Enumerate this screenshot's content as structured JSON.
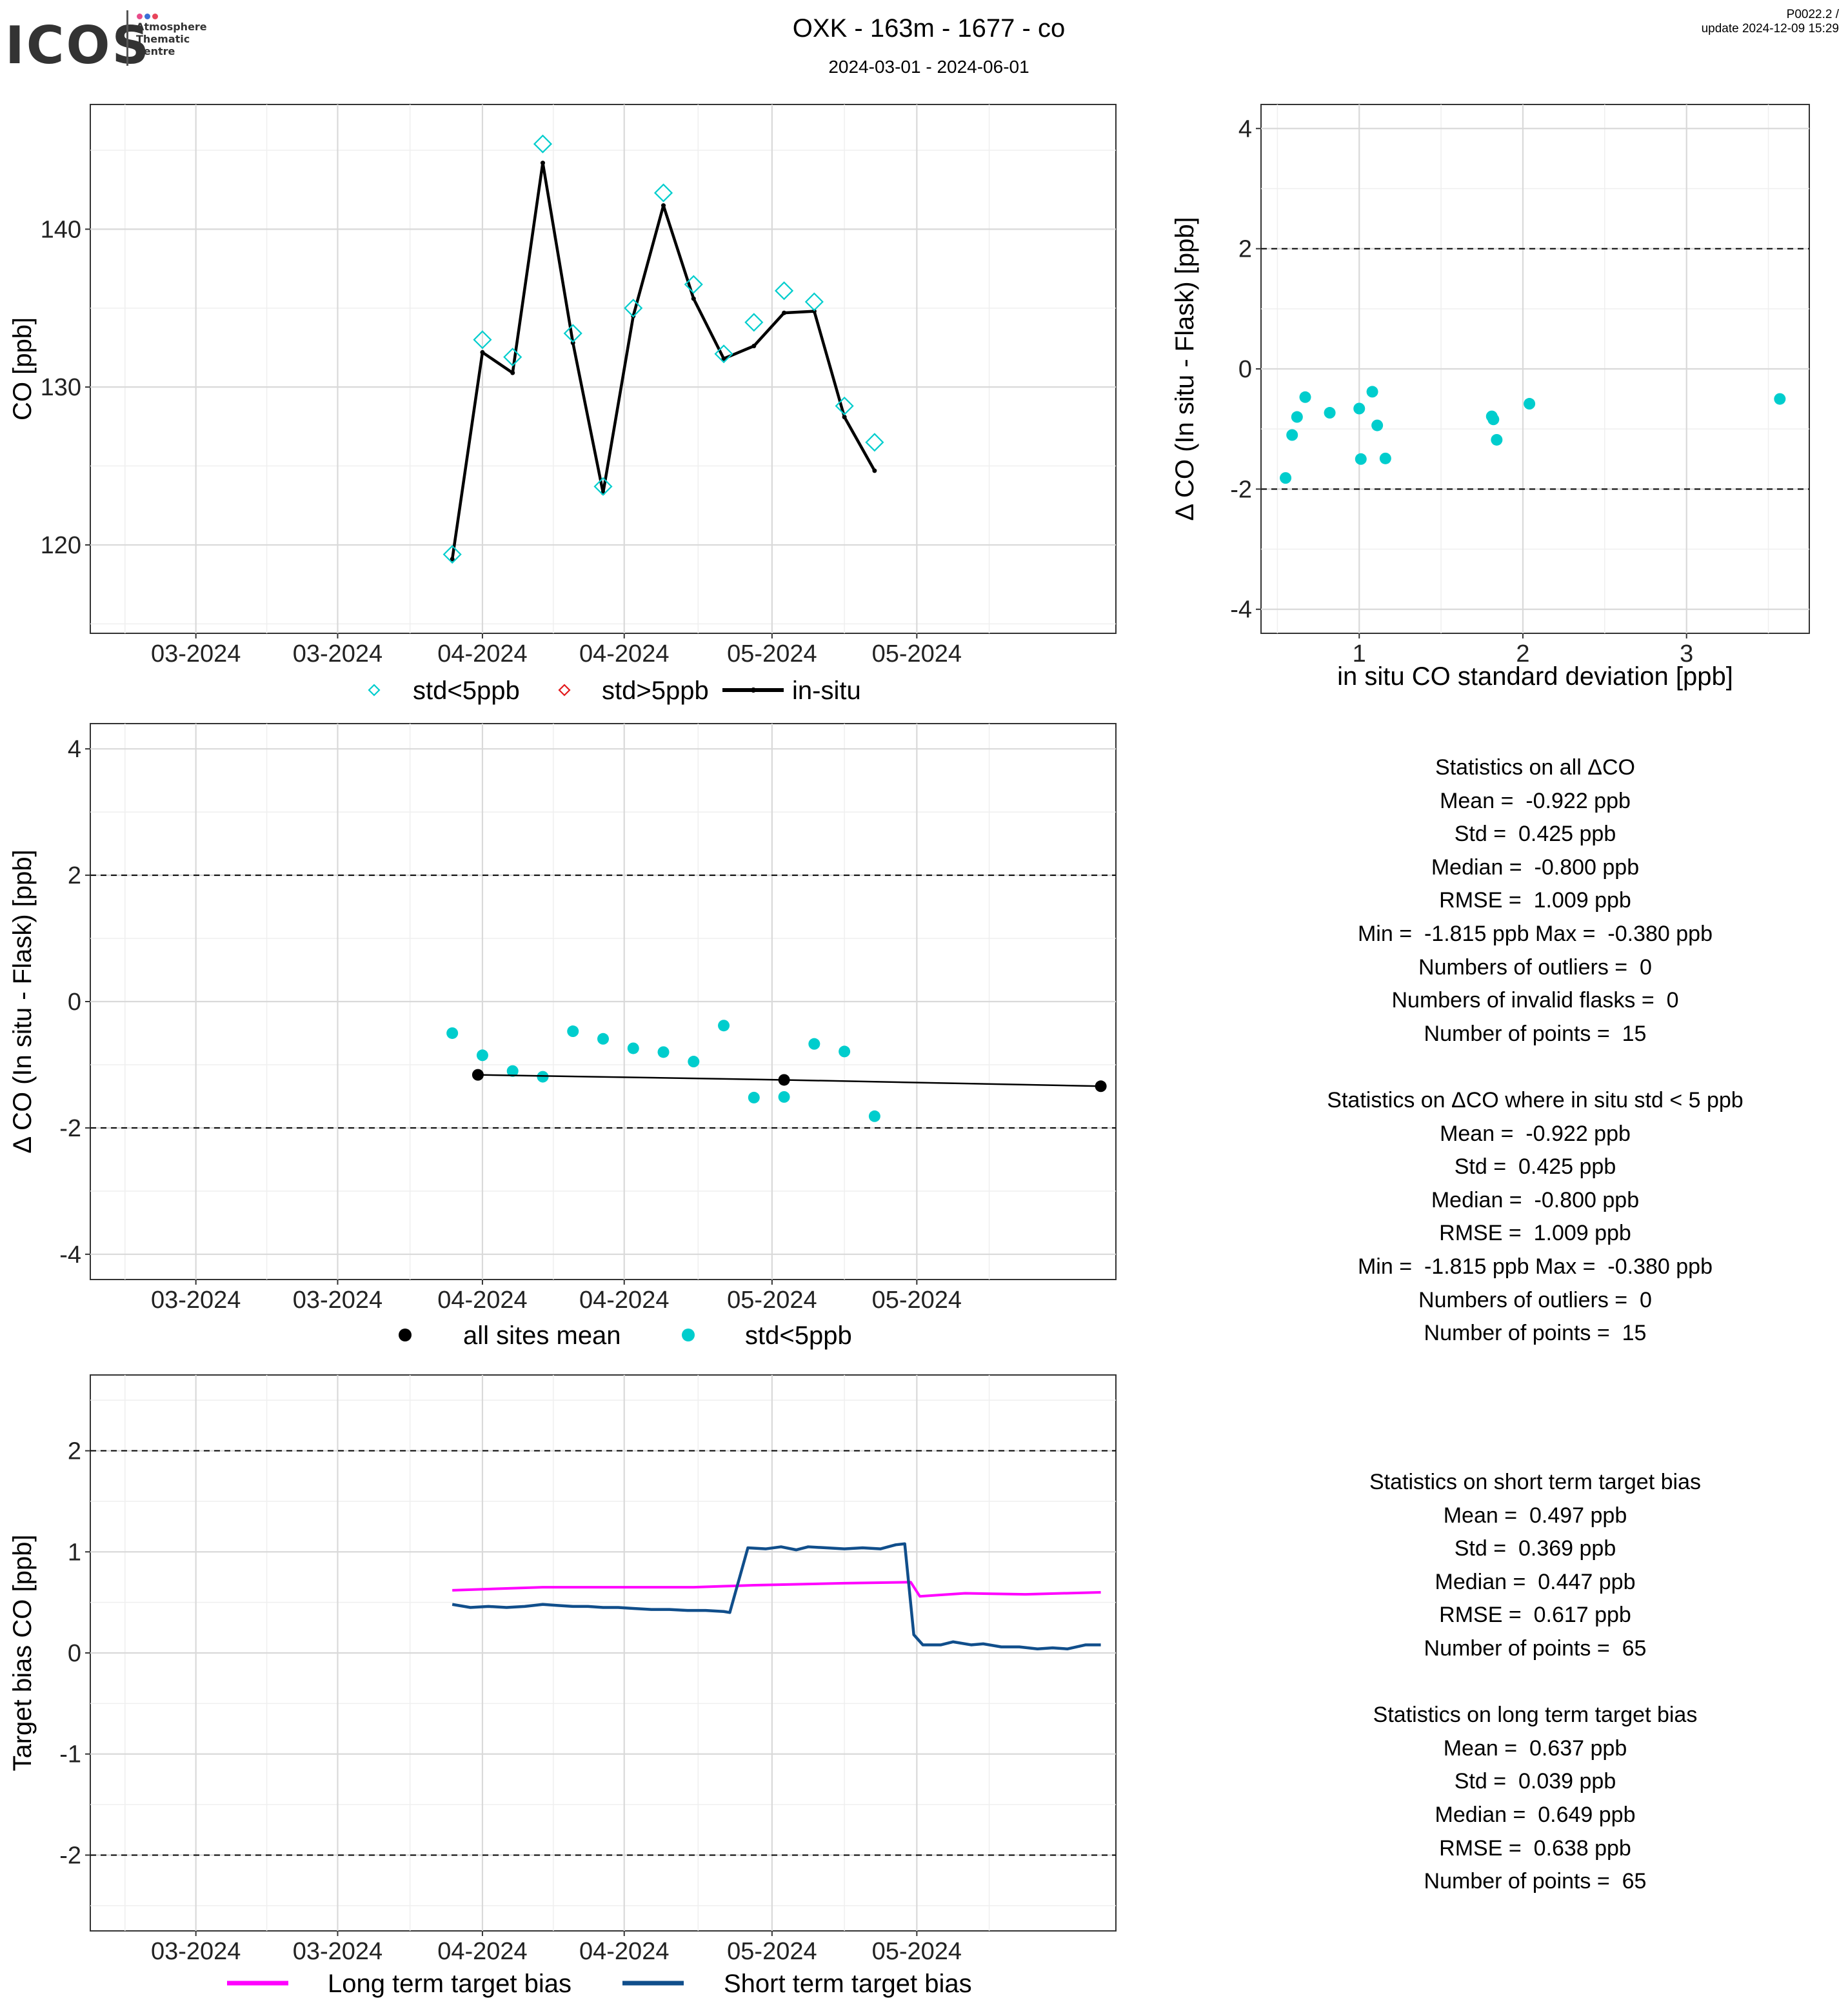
{
  "header": {
    "title": "OXK - 163m - 1677 - co",
    "subtitle": "2024-03-01 - 2024-06-01",
    "version_line1": "P0022.2 /",
    "version_line2": "update  2024-12-09 15:29"
  },
  "logo": {
    "name": "ICOS",
    "line1": "Atmosphere",
    "line2": "Thematic",
    "line3": "Centre",
    "dot_colors": [
      "#e84b8a",
      "#3b6fd6",
      "#e8445a"
    ]
  },
  "colors": {
    "cyan": "#00CDCD",
    "red": "#e31a1c",
    "insitu": "#000000",
    "long_bias": "#FF00FF",
    "short_bias": "#104E8B"
  },
  "chart_data": [
    {
      "id": "timeseries",
      "type": "line",
      "ylabel": "CO [ppb]",
      "x_tick_labels": [
        "03-2024",
        "03-2024",
        "04-2024",
        "04-2024",
        "05-2024",
        "05-2024"
      ],
      "yticks": [
        120,
        130,
        140
      ],
      "ylim": [
        114.4,
        147.9
      ],
      "grid": true,
      "series": [
        {
          "name": "std<5ppb",
          "marker": "diamond",
          "points": [
            [
              12,
              119.4
            ],
            [
              13,
              133.0
            ],
            [
              14,
              131.9
            ],
            [
              15,
              145.4
            ],
            [
              16,
              133.4
            ],
            [
              17,
              123.7
            ],
            [
              18,
              135.0
            ],
            [
              19,
              142.3
            ],
            [
              20,
              136.5
            ],
            [
              21,
              132.1
            ],
            [
              22,
              134.1
            ],
            [
              23,
              136.1
            ],
            [
              24,
              135.4
            ],
            [
              25,
              128.8
            ],
            [
              26,
              126.5
            ]
          ]
        },
        {
          "name": "std>5ppb",
          "marker": "diamond",
          "points": []
        },
        {
          "name": "in-situ",
          "points": [
            [
              12,
              119.1
            ],
            [
              13,
              132.2
            ],
            [
              14,
              130.9
            ],
            [
              15,
              144.2
            ],
            [
              16,
              132.8
            ],
            [
              17,
              123.3
            ],
            [
              18,
              134.5
            ],
            [
              19,
              141.5
            ],
            [
              20,
              135.6
            ],
            [
              21,
              131.8
            ],
            [
              22,
              132.6
            ],
            [
              23,
              134.7
            ],
            [
              24,
              134.8
            ],
            [
              25,
              128.1
            ],
            [
              26,
              124.7
            ]
          ]
        }
      ],
      "legend": [
        "std<5ppb",
        "std>5ppb",
        "in-situ"
      ],
      "legend_position": "bottom"
    },
    {
      "id": "delta_vs_std",
      "type": "scatter",
      "xlabel": "in situ CO standard deviation [ppb]",
      "ylabel": "Δ CO (In situ - Flask) [ppb]",
      "xticks": [
        1,
        2,
        3
      ],
      "yticks": [
        -4,
        -2,
        0,
        2,
        4
      ],
      "xlim": [
        0.4,
        3.75
      ],
      "ylim": [
        -4.4,
        4.4
      ],
      "hlines": [
        -2,
        2
      ],
      "grid": true,
      "points": [
        [
          0.55,
          -1.815
        ],
        [
          0.59,
          -1.1
        ],
        [
          0.62,
          -0.8
        ],
        [
          0.67,
          -0.47
        ],
        [
          0.82,
          -0.73
        ],
        [
          1.0,
          -0.66
        ],
        [
          1.01,
          -1.5
        ],
        [
          1.08,
          -0.38
        ],
        [
          1.11,
          -0.94
        ],
        [
          1.16,
          -1.49
        ],
        [
          1.81,
          -0.79
        ],
        [
          1.82,
          -0.84
        ],
        [
          1.84,
          -1.18
        ],
        [
          2.04,
          -0.58
        ],
        [
          3.57,
          -0.5
        ]
      ]
    },
    {
      "id": "delta_timeseries",
      "type": "scatter",
      "ylabel": "Δ CO (In situ - Flask) [ppb]",
      "x_tick_labels": [
        "03-2024",
        "03-2024",
        "04-2024",
        "04-2024",
        "05-2024",
        "05-2024"
      ],
      "yticks": [
        -4,
        -2,
        0,
        2,
        4
      ],
      "ylim": [
        -4.4,
        4.4
      ],
      "hlines": [
        -2,
        2
      ],
      "grid": true,
      "series": [
        {
          "name": "std<5ppb",
          "points": [
            [
              12,
              -0.5
            ],
            [
              13,
              -0.85
            ],
            [
              14,
              -1.1
            ],
            [
              15,
              -1.19
            ],
            [
              16,
              -0.47
            ],
            [
              17,
              -0.59
            ],
            [
              18,
              -0.74
            ],
            [
              19,
              -0.8
            ],
            [
              20,
              -0.95
            ],
            [
              21,
              -0.38
            ],
            [
              22,
              -1.52
            ],
            [
              23,
              -1.51
            ],
            [
              24,
              -0.67
            ],
            [
              25,
              -0.79
            ],
            [
              26,
              -1.815
            ]
          ]
        },
        {
          "name": "all sites mean",
          "points": [
            [
              12.85,
              -1.16
            ],
            [
              23,
              -1.24
            ],
            [
              33.5,
              -1.34
            ]
          ]
        }
      ],
      "legend": [
        "all sites mean",
        "std<5ppb"
      ],
      "legend_position": "bottom"
    },
    {
      "id": "target_bias",
      "type": "line",
      "ylabel": "Target bias CO [ppb]",
      "x_tick_labels": [
        "03-2024",
        "03-2024",
        "04-2024",
        "04-2024",
        "05-2024",
        "05-2024"
      ],
      "yticks": [
        -2,
        -1,
        0,
        1,
        2
      ],
      "ylim": [
        -2.75,
        2.75
      ],
      "hlines": [
        -2,
        2
      ],
      "grid": true,
      "series": [
        {
          "name": "Long term target bias",
          "points": [
            [
              12,
              0.62
            ],
            [
              15,
              0.65
            ],
            [
              20,
              0.65
            ],
            [
              21,
              0.66
            ],
            [
              22,
              0.67
            ],
            [
              25,
              0.69
            ],
            [
              27.2,
              0.7
            ],
            [
              27.5,
              0.56
            ],
            [
              28,
              0.57
            ],
            [
              29,
              0.59
            ],
            [
              31,
              0.58
            ],
            [
              33.5,
              0.6
            ]
          ]
        },
        {
          "name": "Short term target bias",
          "points": [
            [
              12,
              0.48
            ],
            [
              12.6,
              0.45
            ],
            [
              13.2,
              0.46
            ],
            [
              13.8,
              0.45
            ],
            [
              14.4,
              0.46
            ],
            [
              15,
              0.48
            ],
            [
              15.5,
              0.47
            ],
            [
              16,
              0.46
            ],
            [
              16.5,
              0.46
            ],
            [
              17,
              0.45
            ],
            [
              17.5,
              0.45
            ],
            [
              18,
              0.44
            ],
            [
              18.6,
              0.43
            ],
            [
              19.2,
              0.43
            ],
            [
              19.8,
              0.42
            ],
            [
              20.4,
              0.42
            ],
            [
              21,
              0.41
            ],
            [
              21.2,
              0.4
            ],
            [
              21.5,
              0.72
            ],
            [
              21.8,
              1.04
            ],
            [
              22.4,
              1.03
            ],
            [
              22.9,
              1.05
            ],
            [
              23.4,
              1.02
            ],
            [
              23.8,
              1.05
            ],
            [
              24.4,
              1.04
            ],
            [
              25,
              1.03
            ],
            [
              25.6,
              1.04
            ],
            [
              26.2,
              1.03
            ],
            [
              26.7,
              1.07
            ],
            [
              27.0,
              1.08
            ],
            [
              27.3,
              0.18
            ],
            [
              27.6,
              0.08
            ],
            [
              28.2,
              0.08
            ],
            [
              28.6,
              0.11
            ],
            [
              29.2,
              0.08
            ],
            [
              29.6,
              0.09
            ],
            [
              30.2,
              0.06
            ],
            [
              30.8,
              0.06
            ],
            [
              31.4,
              0.04
            ],
            [
              31.9,
              0.05
            ],
            [
              32.4,
              0.04
            ],
            [
              33.0,
              0.08
            ],
            [
              33.5,
              0.08
            ]
          ]
        }
      ],
      "legend": [
        "Long term target bias",
        "Short term target bias"
      ],
      "legend_position": "bottom"
    }
  ],
  "stats_all": [
    "Statistics on all ΔCO",
    "Mean =  -0.922 ppb",
    "Std =  0.425 ppb",
    "Median =  -0.800 ppb",
    "RMSE =  1.009 ppb",
    "Min =  -1.815 ppb Max =  -0.380 ppb",
    "Numbers of outliers =  0",
    "Numbers of invalid flasks =  0",
    "Number of points =  15",
    "",
    "Statistics on ΔCO where in situ std < 5 ppb",
    "Mean =  -0.922 ppb",
    "Std =  0.425 ppb",
    "Median =  -0.800 ppb",
    "RMSE =  1.009 ppb",
    "Min =  -1.815 ppb Max =  -0.380 ppb",
    "Numbers of outliers =  0",
    "Number of points =  15"
  ],
  "stats_bias": [
    "Statistics on short term target bias",
    "Mean =  0.497 ppb",
    "Std =  0.369 ppb",
    "Median =  0.447 ppb",
    "RMSE =  0.617 ppb",
    "Number of points =  65",
    "",
    "Statistics on long term target bias",
    "Mean =  0.637 ppb",
    "Std =  0.039 ppb",
    "Median =  0.649 ppb",
    "RMSE =  0.638 ppb",
    "Number of points =  65"
  ]
}
